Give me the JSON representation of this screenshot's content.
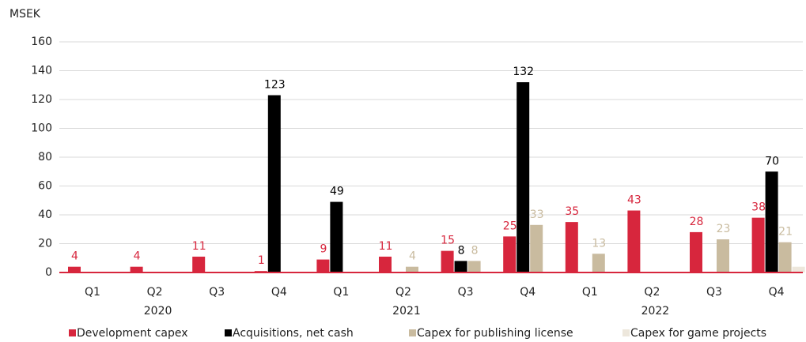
{
  "chart_data": {
    "type": "bar",
    "y_label": "MSEK",
    "categories": [
      "Q1",
      "Q2",
      "Q3",
      "Q4",
      "Q1",
      "Q2",
      "Q3",
      "Q4",
      "Q1",
      "Q2",
      "Q3",
      "Q4"
    ],
    "groups": [
      "2020",
      "2021",
      "2022"
    ],
    "series": [
      {
        "name": "Development capex",
        "color": "#d7263d",
        "data_labels": true,
        "values": [
          4,
          4,
          11,
          1,
          9,
          11,
          15,
          25,
          35,
          43,
          28,
          38
        ]
      },
      {
        "name": "Acquisitions, net cash",
        "color": "#000000",
        "data_labels": true,
        "values": [
          null,
          null,
          null,
          123,
          49,
          null,
          8,
          132,
          null,
          null,
          null,
          70
        ]
      },
      {
        "name": "Capex for publishing license",
        "color": "#c9bb9f",
        "data_labels": true,
        "values": [
          null,
          null,
          null,
          null,
          null,
          4,
          8,
          33,
          13,
          null,
          23,
          21
        ]
      },
      {
        "name": "Capex for game projects",
        "color": "#ede7dc",
        "data_labels": false,
        "values": [
          null,
          null,
          null,
          null,
          null,
          null,
          null,
          null,
          null,
          null,
          null,
          4
        ]
      }
    ],
    "ylim": [
      0,
      160
    ],
    "yticks": [
      0,
      20,
      40,
      60,
      80,
      100,
      120,
      140,
      160
    ],
    "grid": true
  }
}
